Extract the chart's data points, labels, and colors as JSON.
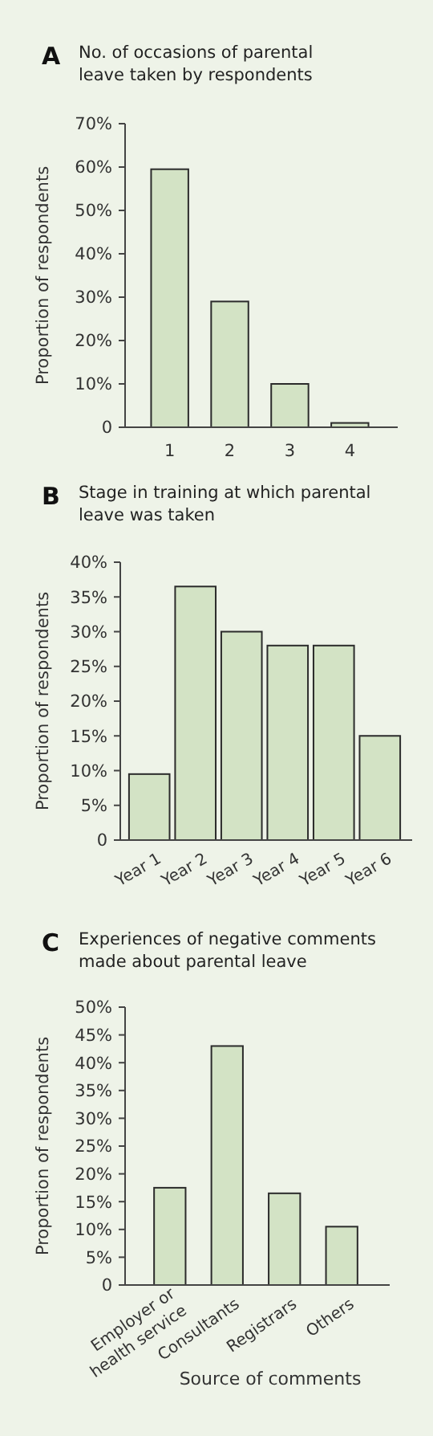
{
  "chart_data": [
    {
      "type": "bar",
      "title": "No. of occasions of parental leave taken by respondents",
      "annotations": [
        "A"
      ],
      "ylabel": "Proportion of respondents",
      "categories": [
        "1",
        "2",
        "3",
        "4"
      ],
      "values": [
        59.5,
        29,
        10,
        1
      ],
      "color": "#d3e3c5",
      "ylim": [
        0,
        70
      ],
      "yticks": [
        {
          "value": 0,
          "label": "0"
        },
        {
          "value": 10,
          "label": "10%"
        },
        {
          "value": 20,
          "label": "20%"
        },
        {
          "value": 30,
          "label": "30%"
        },
        {
          "value": 40,
          "label": "40%"
        },
        {
          "value": 50,
          "label": "50%"
        },
        {
          "value": 60,
          "label": "60%"
        },
        {
          "value": 70,
          "label": "70%"
        }
      ],
      "grid": false
    },
    {
      "type": "bar",
      "title": "Stage in training at which parental leave was taken",
      "annotations": [
        "B"
      ],
      "ylabel": "Proportion of respondents",
      "categories": [
        "Year 1",
        "Year 2",
        "Year 3",
        "Year 4",
        "Year 5",
        "Year 6"
      ],
      "values": [
        9.5,
        36.5,
        30,
        28,
        28,
        15
      ],
      "color": "#d3e3c5",
      "ylim": [
        0,
        40
      ],
      "yticks": [
        {
          "value": 0,
          "label": "0"
        },
        {
          "value": 5,
          "label": "5%"
        },
        {
          "value": 10,
          "label": "10%"
        },
        {
          "value": 15,
          "label": "15%"
        },
        {
          "value": 20,
          "label": "20%"
        },
        {
          "value": 25,
          "label": "25%"
        },
        {
          "value": 30,
          "label": "30%"
        },
        {
          "value": 35,
          "label": "35%"
        },
        {
          "value": 40,
          "label": "40%"
        }
      ],
      "grid": false
    },
    {
      "type": "bar",
      "title": "Experiences of negative comments made about parental leave",
      "annotations": [
        "C"
      ],
      "ylabel": "Proportion of respondents",
      "xlabel": "Source of comments",
      "categories": [
        "Employer or health service",
        "Consultants",
        "Registrars",
        "Others"
      ],
      "values": [
        17.5,
        43,
        16.5,
        10.5
      ],
      "color": "#d3e3c5",
      "ylim": [
        0,
        50
      ],
      "yticks": [
        {
          "value": 0,
          "label": "0"
        },
        {
          "value": 5,
          "label": "5%"
        },
        {
          "value": 10,
          "label": "10%"
        },
        {
          "value": 15,
          "label": "15%"
        },
        {
          "value": 20,
          "label": "20%"
        },
        {
          "value": 25,
          "label": "25%"
        },
        {
          "value": 30,
          "label": "30%"
        },
        {
          "value": 35,
          "label": "35%"
        },
        {
          "value": 40,
          "label": "40%"
        },
        {
          "value": 45,
          "label": "45%"
        },
        {
          "value": 50,
          "label": "50%"
        }
      ],
      "grid": false
    }
  ]
}
